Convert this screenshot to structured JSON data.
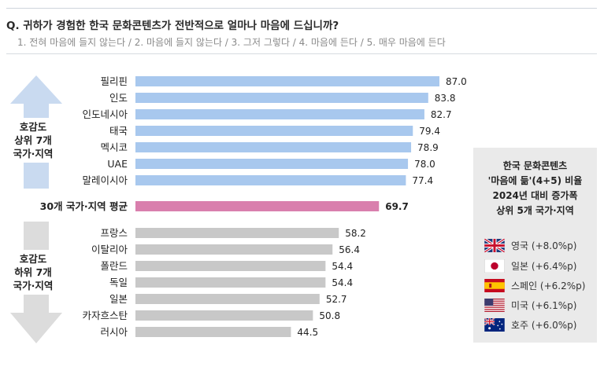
{
  "header": {
    "question": "Q. 귀하가 경험한 한국 문화콘텐츠가 전반적으로 얼마나 마음에 드십니까?",
    "scale": "1. 전혀 마음에 들지 않는다 / 2. 마음에 들지 않는다 / 3. 그저 그렇다 / 4. 마음에 든다 / 5. 매우 마음에 든다"
  },
  "groups": {
    "top": [
      "호감도",
      "상위 7개",
      "국가·지역"
    ],
    "bottom": [
      "호감도",
      "하위 7개",
      "국가·지역"
    ]
  },
  "side_panel": {
    "title_lines": [
      "한국 문화콘텐츠",
      "'마음에 듦'(4+5) 비율",
      "2024년 대비 증가폭",
      "상위 5개 국가·지역"
    ],
    "countries": [
      {
        "label": "영국 (+8.0%p)",
        "flag": "uk-flag-icon"
      },
      {
        "label": "일본 (+6.4%p)",
        "flag": "japan-flag-icon"
      },
      {
        "label": "스페인 (+6.2%p)",
        "flag": "spain-flag-icon"
      },
      {
        "label": "미국 (+6.1%p)",
        "flag": "usa-flag-icon"
      },
      {
        "label": "호주 (+6.0%p)",
        "flag": "australia-flag-icon"
      }
    ]
  },
  "colors": {
    "top": "#a8c8ee",
    "average": "#d97fad",
    "bottom": "#c8c8c8",
    "arrow_top": "#c9daf0",
    "arrow_bottom": "#dcdcdc"
  },
  "chart_data": {
    "type": "bar",
    "orientation": "horizontal",
    "xlim": [
      0,
      100
    ],
    "groups": [
      {
        "group": "top",
        "categories": [
          "필리핀",
          "인도",
          "인도네시아",
          "태국",
          "멕시코",
          "UAE",
          "말레이시아"
        ],
        "values": [
          87.0,
          83.8,
          82.7,
          79.4,
          78.9,
          78.0,
          77.4
        ],
        "value_labels": [
          "87.0",
          "83.8",
          "82.7",
          "79.4",
          "78.9",
          "78.0",
          "77.4"
        ]
      },
      {
        "group": "average",
        "categories": [
          "30개 국가·지역 평균"
        ],
        "values": [
          69.7
        ],
        "value_labels": [
          "69.7"
        ]
      },
      {
        "group": "bottom",
        "categories": [
          "프랑스",
          "이탈리아",
          "폴란드",
          "독일",
          "일본",
          "카자흐스탄",
          "러시아"
        ],
        "values": [
          58.2,
          56.4,
          54.4,
          54.4,
          52.7,
          50.8,
          44.5
        ],
        "value_labels": [
          "58.2",
          "56.4",
          "54.4",
          "54.4",
          "52.7",
          "50.8",
          "44.5"
        ]
      }
    ]
  }
}
